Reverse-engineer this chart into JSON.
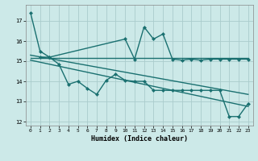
{
  "title": "",
  "xlabel": "Humidex (Indice chaleur)",
  "xlim": [
    -0.5,
    23.5
  ],
  "ylim": [
    11.8,
    17.8
  ],
  "yticks": [
    12,
    13,
    14,
    15,
    16,
    17
  ],
  "xticks": [
    0,
    1,
    2,
    3,
    4,
    5,
    6,
    7,
    8,
    9,
    10,
    11,
    12,
    13,
    14,
    15,
    16,
    17,
    18,
    19,
    20,
    21,
    22,
    23
  ],
  "background_color": "#cce9e8",
  "grid_color": "#aacccc",
  "line_color": "#1a7070",
  "line_width": 1.0,
  "marker_size": 2.5,
  "series0_x": [
    0,
    1,
    2,
    10,
    11,
    12,
    13,
    14,
    15,
    16,
    17,
    18,
    19,
    20,
    21,
    22,
    23
  ],
  "series0_y": [
    17.4,
    15.5,
    15.2,
    16.1,
    15.1,
    16.7,
    16.1,
    16.35,
    15.1,
    15.05,
    15.1,
    15.05,
    15.1,
    15.1,
    15.1,
    15.1,
    15.1
  ],
  "series1_x": [
    0,
    23
  ],
  "series1_y": [
    15.15,
    15.15
  ],
  "series2_x": [
    1,
    2,
    3,
    4,
    5,
    6,
    7,
    8,
    9,
    10,
    11,
    12,
    13,
    14,
    15,
    16,
    17,
    18,
    19,
    20,
    21,
    22,
    23
  ],
  "series2_y": [
    15.2,
    15.2,
    14.85,
    13.85,
    14.0,
    13.65,
    13.35,
    14.05,
    14.35,
    14.05,
    14.0,
    14.0,
    13.55,
    13.55,
    13.55,
    13.55,
    13.55,
    13.55,
    13.55,
    13.55,
    12.25,
    12.25,
    12.9
  ],
  "series3_x": [
    0,
    23
  ],
  "series3_y": [
    15.3,
    13.35
  ],
  "series4_x": [
    0,
    23
  ],
  "series4_y": [
    15.05,
    12.75
  ]
}
